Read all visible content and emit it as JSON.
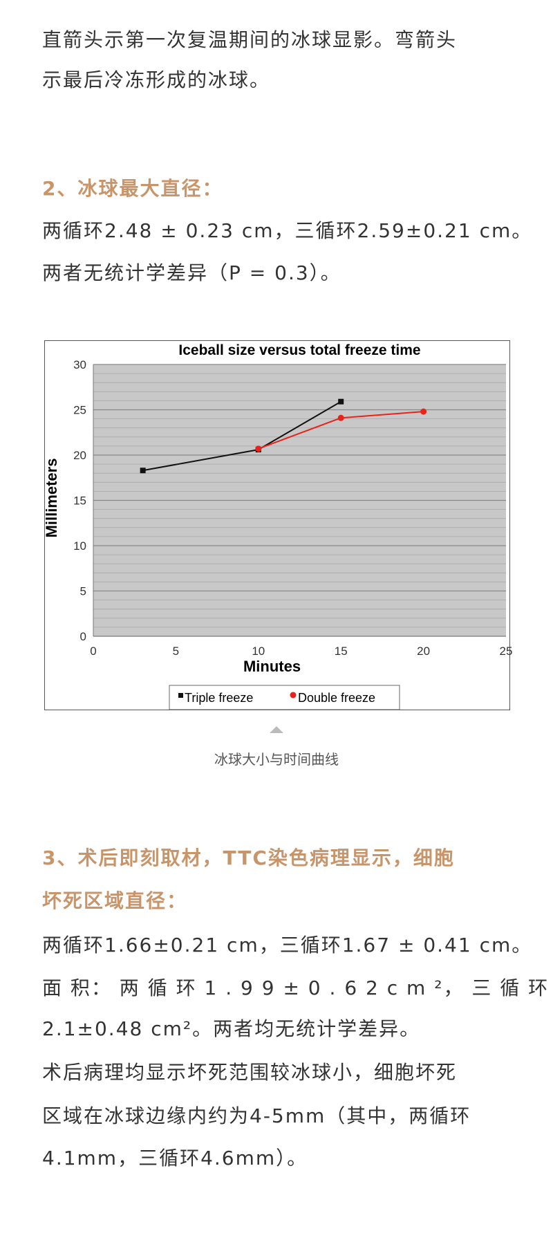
{
  "paragraphs": {
    "p1": [
      "直箭头示第一次复温期间的冰球显影。弯箭头",
      "示最后冷冻形成的冰球。"
    ],
    "h2": "2、冰球最大直径：",
    "p2": [
      "两循环2.48 ± 0.23 cm，三循环2.59±0.21 cm。",
      "两者无统计学差异（P = 0.3）。"
    ],
    "h3": [
      "3、术后即刻取材，TTC染色病理显示，细胞",
      "坏死区域直径："
    ],
    "p3": [
      "两循环1.66±0.21 cm，三循环1.67 ± 0.41 cm。",
      "面 积： 两 循 环 1 . 9 9 ± 0 . 6 2 c m ²， 三 循 环",
      "2.1±0.48 cm²。两者均无统计学差异。",
      "术后病理均显示坏死范围较冰球小，细胞坏死",
      "区域在冰球边缘内约为4-5mm（其中，两循环",
      "4.1mm，三循环4.6mm）。"
    ]
  },
  "figure_caption": "冰球大小与时间曲线",
  "colors": {
    "heading": "#c8956a",
    "triple": "#111111",
    "double": "#e8231a",
    "plot_bg": "#c8c8c8"
  },
  "chart_data": {
    "type": "line",
    "title": "Iceball size versus total freeze time",
    "xlabel": "Minutes",
    "ylabel": "Millimeters",
    "xlim": [
      0,
      25
    ],
    "ylim": [
      0,
      30
    ],
    "xticks": [
      "0",
      "5",
      "10",
      "15",
      "20",
      "25"
    ],
    "yticks": [
      "0",
      "5",
      "10",
      "15",
      "20",
      "25",
      "30"
    ],
    "grid": true,
    "legend": "bottom",
    "series": [
      {
        "name": "Triple freeze",
        "marker": "square",
        "x": [
          3,
          10,
          15
        ],
        "y": [
          18.3,
          20.6,
          25.9
        ]
      },
      {
        "name": "Double freeze",
        "marker": "diamond",
        "x": [
          10,
          15,
          20
        ],
        "y": [
          20.7,
          24.1,
          24.8
        ]
      }
    ]
  }
}
